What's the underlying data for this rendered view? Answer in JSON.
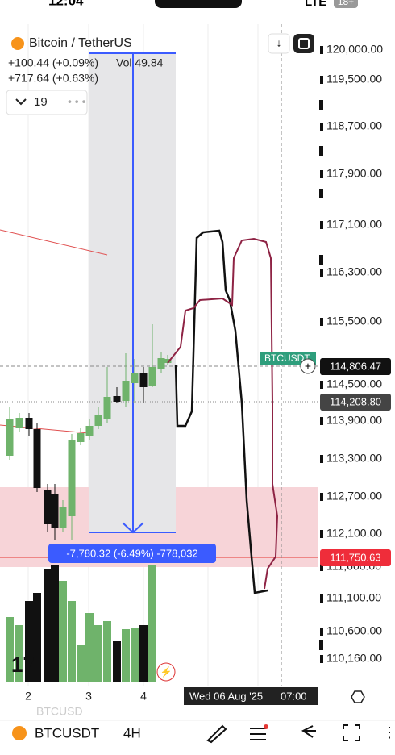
{
  "status_bar": {
    "time": "12:04",
    "network": "LTE",
    "badge": "18+"
  },
  "header": {
    "symbol": "Bitcoin / TetherUS",
    "change_1": "+100.44 (+0.09%)",
    "volume": "Vol 49.84",
    "change_2": "+717.64 (+0.63%)",
    "indicator_count": "19"
  },
  "price_axis": {
    "labels": [
      "120,000.00",
      "119,500.00",
      "118,700.00",
      "117,900.00",
      "117,100.00",
      "116,300.00",
      "115,500.00",
      "114,500.00",
      "113,900.00",
      "113,300.00",
      "112,700.00",
      "112,100.00",
      "111,600.00",
      "111,100.00",
      "110,600.00",
      "110,160.00"
    ]
  },
  "badges": {
    "symbol_tag": "BTCUSDT",
    "last_price": "114,806.47",
    "crosshair_price": "114,208.80",
    "measure_price": "111,750.63"
  },
  "measure": {
    "label": "-7,780.32 (-6.49%) -778,032"
  },
  "time_axis": {
    "labels": [
      "2",
      "3",
      "4"
    ],
    "cursor_date": "Wed 06 Aug '25",
    "cursor_time": "07:00"
  },
  "watermark": "BTCUSD",
  "toolbar": {
    "symbol": "BTCUSDT",
    "interval": "4H"
  }
}
